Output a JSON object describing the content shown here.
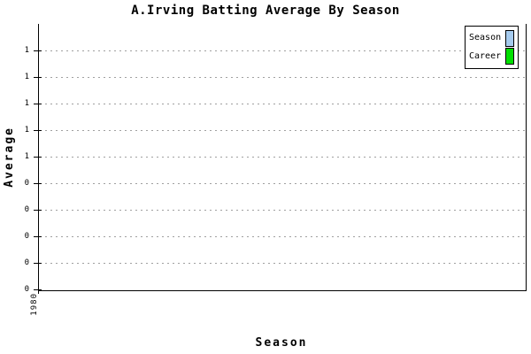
{
  "title": "A.Irving Batting Average By Season",
  "axes": {
    "y_label": "Average",
    "x_label": "Season",
    "x_tick_label": "1980"
  },
  "legend": {
    "position": "top-right",
    "items": [
      {
        "label": "Season",
        "color": "#A6CBEE"
      },
      {
        "label": "Career",
        "color": "#00DF00"
      }
    ]
  },
  "colors": {
    "background": "#FFFFFF",
    "axis": "#000000",
    "gridline": "#A0A0A0",
    "season_swatch": "#A6CBEE",
    "career_swatch": "#00DF00"
  },
  "chart_data": {
    "type": "bar",
    "title": "A.Irving Batting Average By Season",
    "xlabel": "Season",
    "ylabel": "Average",
    "categories": [
      "1980"
    ],
    "series": [
      {
        "name": "Season",
        "color": "#A6CBEE",
        "values": []
      },
      {
        "name": "Career",
        "color": "#00DF00",
        "values": []
      }
    ],
    "plot_is_empty": true,
    "ylim": [
      0,
      1.05
    ],
    "y_tick_interval": 0.1,
    "y_tick_display_top_to_bottom": [
      "1",
      "1",
      "1",
      "1",
      "1",
      "0",
      "0",
      "0",
      "0",
      "0"
    ],
    "grid": "horizontal dashed gray lines at each y tick",
    "legend_position": "top-right"
  }
}
